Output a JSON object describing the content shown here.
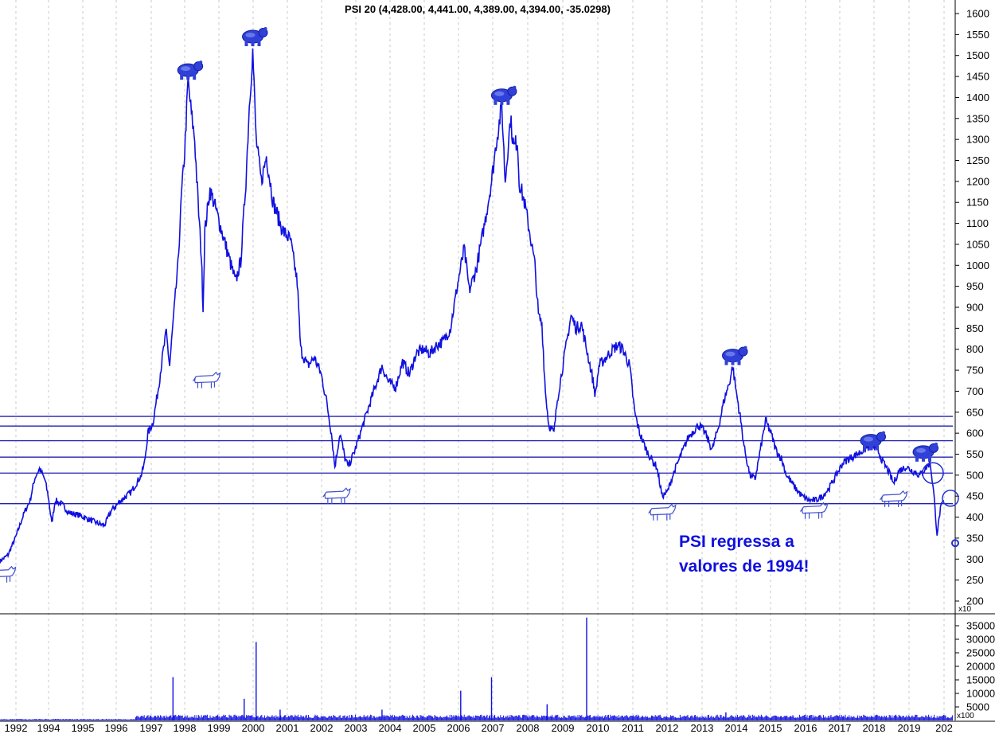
{
  "chart_data": {
    "type": "line",
    "title": "PSI 20 (4,428.00, 4,441.00, 4,389.00, 4,394.00, -35.0298)",
    "annotation": [
      "PSI regressa a",
      "valores de 1994!"
    ],
    "price_unit": "x10",
    "volume_unit": "x100",
    "x_labels": [
      "1992",
      "1994",
      "1995",
      "1996",
      "1997",
      "1998",
      "1999",
      "2000",
      "2001",
      "2002",
      "2003",
      "2004",
      "2005",
      "2006",
      "2007",
      "2008",
      "2009",
      "2010",
      "2011",
      "2012",
      "2013",
      "2014",
      "2015",
      "2016",
      "2017",
      "2018",
      "2019",
      "202"
    ],
    "price_axis": {
      "ticks": [
        200,
        250,
        300,
        350,
        400,
        450,
        500,
        550,
        600,
        650,
        700,
        750,
        800,
        850,
        900,
        950,
        1000,
        1050,
        1100,
        1150,
        1200,
        1250,
        1300,
        1350,
        1400,
        1450,
        1500,
        1550,
        1600
      ],
      "range": [
        175,
        1620
      ]
    },
    "volume_axis": {
      "ticks": [
        5000,
        10000,
        15000,
        20000,
        25000,
        30000,
        35000
      ],
      "range": [
        0,
        40000
      ]
    },
    "horizontal_levels": [
      640,
      617,
      582,
      543,
      505,
      432
    ],
    "series": [
      {
        "values": [
          [
            1992.0,
            295
          ],
          [
            1992.4,
            310
          ],
          [
            1992.8,
            355
          ],
          [
            1993.2,
            410
          ],
          [
            1993.5,
            440
          ],
          [
            1993.75,
            500
          ],
          [
            1993.85,
            515
          ],
          [
            1994.0,
            490
          ],
          [
            1994.1,
            450
          ],
          [
            1994.2,
            385
          ],
          [
            1994.3,
            440
          ],
          [
            1994.5,
            430
          ],
          [
            1994.7,
            410
          ],
          [
            1995.0,
            405
          ],
          [
            1995.3,
            395
          ],
          [
            1995.6,
            385
          ],
          [
            1995.8,
            380
          ],
          [
            1996.0,
            415
          ],
          [
            1996.3,
            440
          ],
          [
            1996.6,
            460
          ],
          [
            1996.9,
            500
          ],
          [
            1997.0,
            530
          ],
          [
            1997.1,
            600
          ],
          [
            1997.25,
            625
          ],
          [
            1997.4,
            700
          ],
          [
            1997.55,
            790
          ],
          [
            1997.65,
            840
          ],
          [
            1997.75,
            760
          ],
          [
            1997.85,
            860
          ],
          [
            1998.0,
            1000
          ],
          [
            1998.1,
            1160
          ],
          [
            1998.2,
            1270
          ],
          [
            1998.3,
            1440
          ],
          [
            1998.4,
            1360
          ],
          [
            1998.5,
            1300
          ],
          [
            1998.6,
            1150
          ],
          [
            1998.7,
            1020
          ],
          [
            1998.75,
            900
          ],
          [
            1998.8,
            1080
          ],
          [
            1998.95,
            1180
          ],
          [
            1999.1,
            1140
          ],
          [
            1999.3,
            1080
          ],
          [
            1999.5,
            1020
          ],
          [
            1999.7,
            960
          ],
          [
            1999.85,
            1010
          ],
          [
            2000.0,
            1200
          ],
          [
            2000.1,
            1380
          ],
          [
            2000.2,
            1510
          ],
          [
            2000.3,
            1300
          ],
          [
            2000.45,
            1200
          ],
          [
            2000.6,
            1260
          ],
          [
            2000.8,
            1150
          ],
          [
            2001.0,
            1100
          ],
          [
            2001.1,
            1080
          ],
          [
            2001.3,
            1060
          ],
          [
            2001.5,
            960
          ],
          [
            2001.6,
            800
          ],
          [
            2001.7,
            780
          ],
          [
            2001.8,
            760
          ],
          [
            2002.0,
            780
          ],
          [
            2002.2,
            740
          ],
          [
            2002.35,
            680
          ],
          [
            2002.5,
            600
          ],
          [
            2002.6,
            520
          ],
          [
            2002.75,
            600
          ],
          [
            2002.9,
            540
          ],
          [
            2003.0,
            520
          ],
          [
            2003.2,
            560
          ],
          [
            2003.4,
            610
          ],
          [
            2003.6,
            660
          ],
          [
            2003.8,
            710
          ],
          [
            2004.0,
            760
          ],
          [
            2004.2,
            720
          ],
          [
            2004.4,
            710
          ],
          [
            2004.6,
            770
          ],
          [
            2004.8,
            740
          ],
          [
            2005.0,
            790
          ],
          [
            2005.2,
            800
          ],
          [
            2005.4,
            790
          ],
          [
            2005.6,
            810
          ],
          [
            2005.8,
            820
          ],
          [
            2006.0,
            850
          ],
          [
            2006.2,
            950
          ],
          [
            2006.4,
            1040
          ],
          [
            2006.55,
            940
          ],
          [
            2006.75,
            990
          ],
          [
            2007.0,
            1100
          ],
          [
            2007.2,
            1200
          ],
          [
            2007.35,
            1300
          ],
          [
            2007.5,
            1380
          ],
          [
            2007.6,
            1200
          ],
          [
            2007.75,
            1350
          ],
          [
            2007.85,
            1280
          ],
          [
            2007.95,
            1300
          ],
          [
            2008.0,
            1200
          ],
          [
            2008.15,
            1150
          ],
          [
            2008.3,
            1080
          ],
          [
            2008.45,
            1000
          ],
          [
            2008.55,
            880
          ],
          [
            2008.65,
            860
          ],
          [
            2008.75,
            700
          ],
          [
            2008.85,
            620
          ],
          [
            2009.0,
            600
          ],
          [
            2009.1,
            680
          ],
          [
            2009.3,
            780
          ],
          [
            2009.5,
            880
          ],
          [
            2009.65,
            850
          ],
          [
            2009.8,
            860
          ],
          [
            2010.0,
            780
          ],
          [
            2010.1,
            740
          ],
          [
            2010.2,
            690
          ],
          [
            2010.3,
            760
          ],
          [
            2010.5,
            780
          ],
          [
            2010.7,
            800
          ],
          [
            2010.85,
            810
          ],
          [
            2011.0,
            800
          ],
          [
            2011.2,
            760
          ],
          [
            2011.35,
            650
          ],
          [
            2011.5,
            600
          ],
          [
            2011.7,
            560
          ],
          [
            2011.9,
            530
          ],
          [
            2012.0,
            520
          ],
          [
            2012.15,
            450
          ],
          [
            2012.3,
            460
          ],
          [
            2012.5,
            510
          ],
          [
            2012.7,
            550
          ],
          [
            2012.9,
            590
          ],
          [
            2013.0,
            600
          ],
          [
            2013.2,
            620
          ],
          [
            2013.4,
            600
          ],
          [
            2013.6,
            560
          ],
          [
            2013.8,
            620
          ],
          [
            2013.95,
            680
          ],
          [
            2014.1,
            720
          ],
          [
            2014.2,
            760
          ],
          [
            2014.3,
            700
          ],
          [
            2014.4,
            650
          ],
          [
            2014.55,
            560
          ],
          [
            2014.7,
            500
          ],
          [
            2014.85,
            490
          ],
          [
            2015.0,
            560
          ],
          [
            2015.15,
            630
          ],
          [
            2015.3,
            600
          ],
          [
            2015.45,
            560
          ],
          [
            2015.6,
            540
          ],
          [
            2015.75,
            500
          ],
          [
            2016.0,
            470
          ],
          [
            2016.2,
            450
          ],
          [
            2016.4,
            440
          ],
          [
            2016.6,
            440
          ],
          [
            2016.8,
            450
          ],
          [
            2017.0,
            470
          ],
          [
            2017.2,
            500
          ],
          [
            2017.4,
            530
          ],
          [
            2017.6,
            540
          ],
          [
            2017.8,
            550
          ],
          [
            2018.0,
            560
          ],
          [
            2018.2,
            570
          ],
          [
            2018.4,
            560
          ],
          [
            2018.55,
            530
          ],
          [
            2018.7,
            510
          ],
          [
            2018.85,
            480
          ],
          [
            2019.0,
            510
          ],
          [
            2019.2,
            520
          ],
          [
            2019.4,
            510
          ],
          [
            2019.6,
            500
          ],
          [
            2019.8,
            520
          ],
          [
            2019.9,
            530
          ],
          [
            2020.0,
            460
          ],
          [
            2020.1,
            360
          ],
          [
            2020.2,
            420
          ],
          [
            2020.3,
            440
          ]
        ]
      }
    ],
    "volume_spikes": [
      [
        1997.85,
        16000
      ],
      [
        1999.95,
        8000
      ],
      [
        2000.3,
        29000
      ],
      [
        2001.0,
        4000
      ],
      [
        2004.0,
        4000
      ],
      [
        2006.3,
        11000
      ],
      [
        2007.2,
        16000
      ],
      [
        2008.8,
        6000
      ],
      [
        2009.95,
        38000
      ],
      [
        2014.0,
        3000
      ]
    ]
  },
  "icons": [
    "bear-icon",
    "bull-icon",
    "circle-icon"
  ],
  "colors": {
    "line": "#1010e0",
    "grid": "#c8c8c8",
    "levels": "#2020b0",
    "icon": "#2030d0"
  }
}
